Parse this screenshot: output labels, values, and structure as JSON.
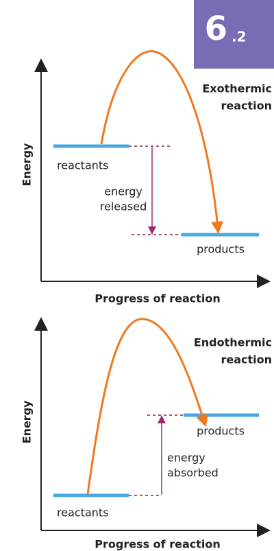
{
  "badge": {
    "number": "6",
    "sub": ".2"
  },
  "diagrams": [
    {
      "title": [
        "Exothermic",
        "reaction"
      ],
      "y_axis": "Energy",
      "x_axis": "Progress of reaction",
      "reactants": "reactants",
      "products": "products",
      "energy_label": [
        "energy",
        "released"
      ]
    },
    {
      "title": [
        "Endothermic",
        "reaction"
      ],
      "y_axis": "Energy",
      "x_axis": "Progress of reaction",
      "reactants": "reactants",
      "products": "products",
      "energy_label": [
        "energy",
        "absorbed"
      ]
    }
  ]
}
